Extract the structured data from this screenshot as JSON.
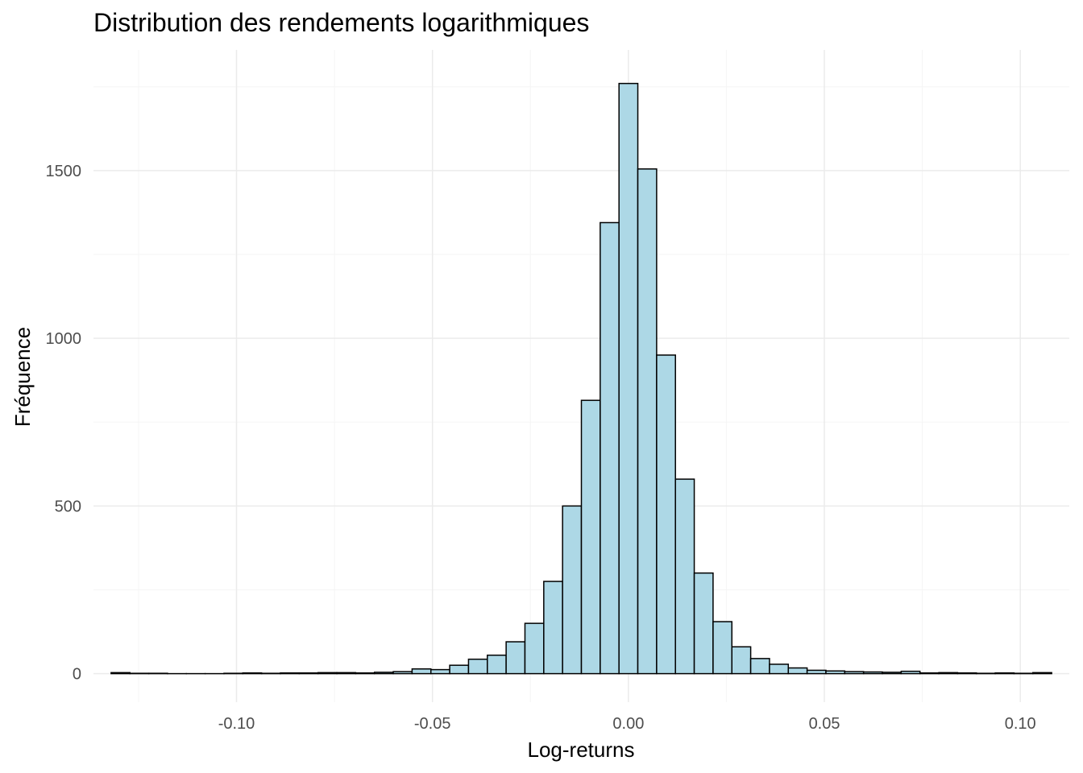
{
  "chart_data": {
    "type": "bar",
    "title": "Distribution des rendements logarithmiques",
    "xlabel": "Log-returns",
    "ylabel": "Fréquence",
    "xlim": [
      -0.1365,
      0.1125
    ],
    "ylim": [
      -85,
      1860
    ],
    "x_ticks": [
      {
        "value": -0.1,
        "label": "-0.10"
      },
      {
        "value": -0.05,
        "label": "-0.05"
      },
      {
        "value": 0.0,
        "label": "0.00"
      },
      {
        "value": 0.05,
        "label": "0.05"
      },
      {
        "value": 0.1,
        "label": "0.10"
      }
    ],
    "y_ticks": [
      {
        "value": 0,
        "label": "0"
      },
      {
        "value": 500,
        "label": "500"
      },
      {
        "value": 1000,
        "label": "1000"
      },
      {
        "value": 1500,
        "label": "1500"
      }
    ],
    "grid": true,
    "bin_width": 0.0048,
    "bin_centers": [
      -0.1296,
      -0.1248,
      -0.12,
      -0.1152,
      -0.1104,
      -0.1056,
      -0.1008,
      -0.096,
      -0.0912,
      -0.0864,
      -0.0816,
      -0.0768,
      -0.072,
      -0.0672,
      -0.0624,
      -0.0576,
      -0.0528,
      -0.048,
      -0.0432,
      -0.0384,
      -0.0336,
      -0.0288,
      -0.024,
      -0.0192,
      -0.0144,
      -0.0096,
      -0.0048,
      0.0,
      0.0048,
      0.0096,
      0.0144,
      0.0192,
      0.024,
      0.0288,
      0.0336,
      0.0384,
      0.0432,
      0.048,
      0.0528,
      0.0576,
      0.0624,
      0.0672,
      0.072,
      0.0768,
      0.0816,
      0.0864,
      0.0912,
      0.096,
      0.1008,
      0.1056
    ],
    "values": [
      3,
      1,
      1,
      0,
      0,
      0,
      1,
      2,
      1,
      2,
      2,
      3,
      3,
      2,
      4,
      6,
      14,
      12,
      25,
      43,
      55,
      95,
      150,
      275,
      500,
      815,
      1345,
      1760,
      1505,
      950,
      580,
      300,
      155,
      80,
      45,
      28,
      17,
      10,
      8,
      6,
      5,
      4,
      7,
      2,
      3,
      2,
      1,
      2,
      1,
      3
    ],
    "colors": {
      "fill": "#add8e6",
      "stroke": "#000000",
      "grid_major": "#ebebeb",
      "grid_minor": "#f5f5f5"
    }
  }
}
